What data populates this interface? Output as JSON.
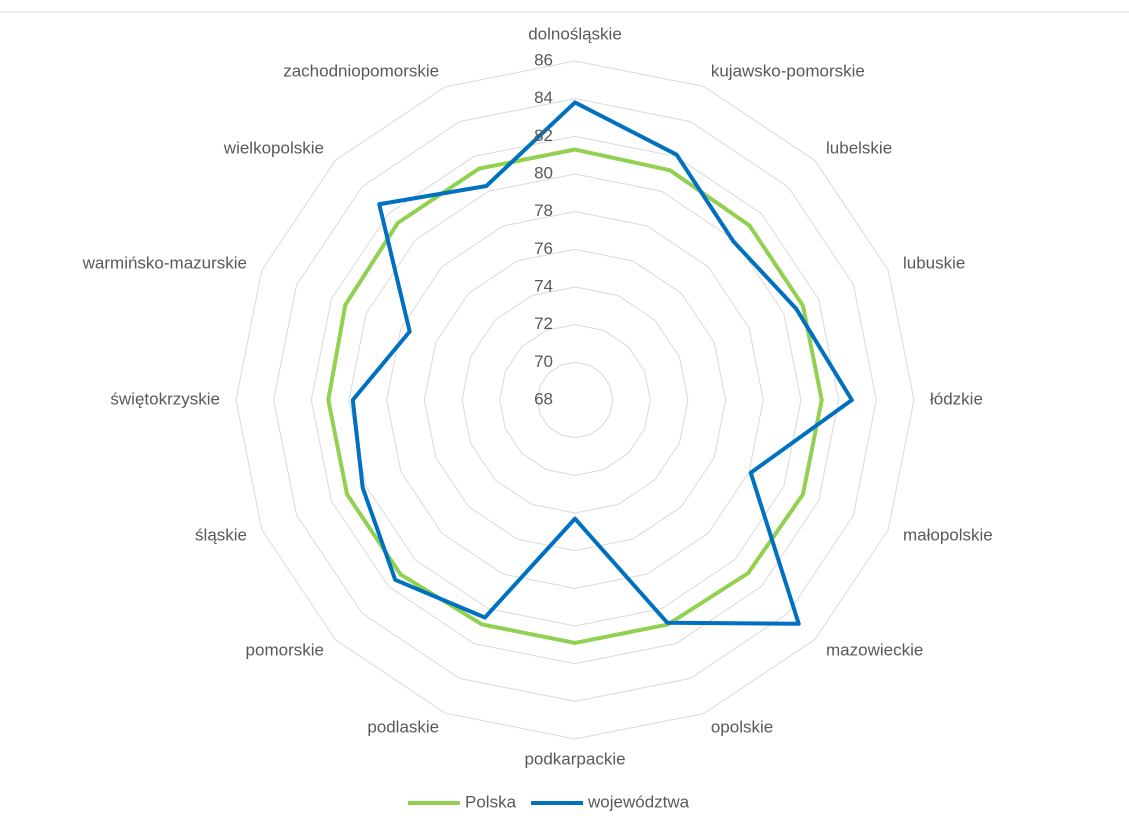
{
  "chart_data": {
    "type": "radar",
    "categories": [
      "dolnośląskie",
      "kujawsko-pomorskie",
      "lubelskie",
      "lubuskie",
      "łódzkie",
      "małopolskie",
      "mazowieckie",
      "opolskie",
      "podkarpackie",
      "podlaskie",
      "pomorskie",
      "śląskie",
      "świętokrzyskie",
      "warmińsko-mazurskie",
      "wielkopolskie",
      "zachodniopomorskie"
    ],
    "series": [
      {
        "name": "Polska",
        "color": "#92d050",
        "values": [
          81.3,
          81.2,
          81.1,
          81.1,
          81.1,
          81.1,
          81.0,
          80.9,
          80.9,
          80.9,
          81.1,
          81.1,
          81.1,
          81.2,
          81.3,
          81.3
        ]
      },
      {
        "name": "województwa",
        "color": "#0070c0",
        "values": [
          83.8,
          82.1,
          79.9,
          80.7,
          82.7,
          78.1,
          84.8,
          80.8,
          74.3,
          80.5,
          81.5,
          80.2,
          79.8,
          77.5,
          82.7,
          80.3
        ]
      }
    ],
    "ylim": [
      68,
      86
    ],
    "yticks": [
      68,
      70,
      72,
      74,
      76,
      78,
      80,
      82,
      84,
      86
    ],
    "grid": true,
    "legend": "bottom"
  }
}
